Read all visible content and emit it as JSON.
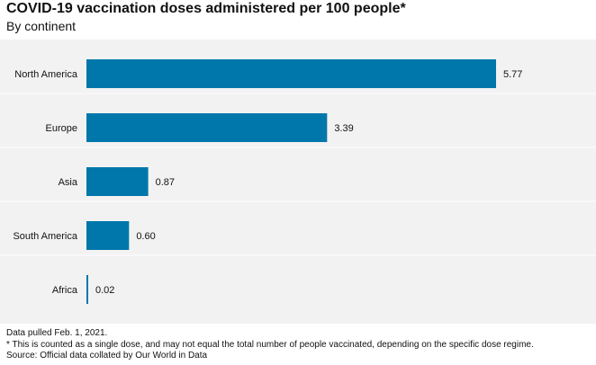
{
  "title": "COVID-19 vaccination doses administered per 100 people*",
  "subtitle": "By continent",
  "footer": {
    "line1": "Data pulled Feb. 1, 2021.",
    "line2": "* This is counted as a single dose, and may not equal the total number of people vaccinated, depending on the specific dose regime.",
    "line3": "Source: Official data collated by Our World in Data"
  },
  "colors": {
    "bar": "#0077aa",
    "plot_background": "#f2f2f2",
    "gridline": "#ffffff"
  },
  "chart_data": {
    "type": "bar",
    "orientation": "horizontal",
    "title": "COVID-19 vaccination doses administered per 100 people*",
    "subtitle": "By continent",
    "categories": [
      "North America",
      "Europe",
      "Asia",
      "South America",
      "Africa"
    ],
    "values": [
      5.77,
      3.39,
      0.87,
      0.6,
      0.02
    ],
    "value_labels": [
      "5.77",
      "3.39",
      "0.87",
      "0.60",
      "0.02"
    ],
    "xlim": [
      0,
      6.5
    ],
    "grid": true,
    "legend": "none"
  }
}
